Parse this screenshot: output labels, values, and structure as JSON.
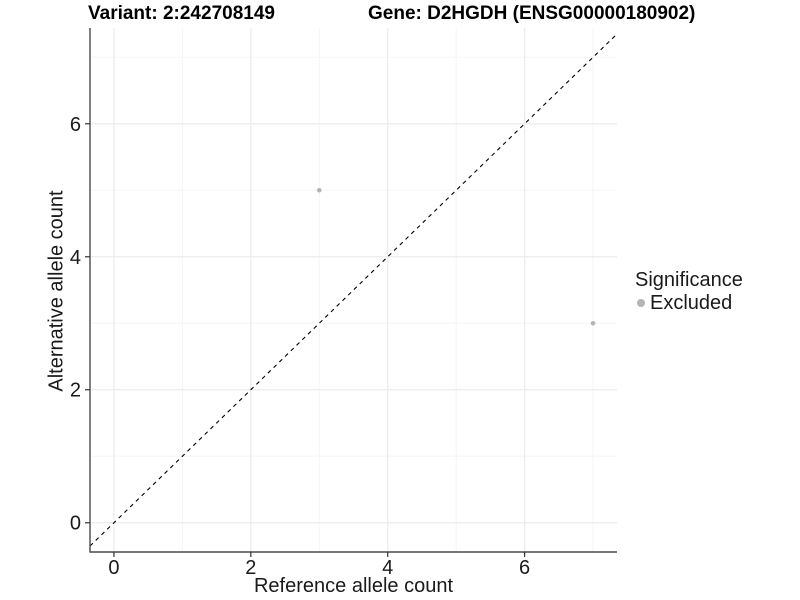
{
  "header": {
    "variant_title": "Variant: 2:242708149",
    "gene_title": "Gene: D2HGDH (ENSG00000180902)"
  },
  "axis": {
    "x_title": "Reference allele count",
    "y_title": "Alternative allele count"
  },
  "legend": {
    "title": "Significance",
    "items": [
      {
        "label": "Excluded",
        "color": "#b4b4b4"
      }
    ]
  },
  "colors": {
    "grid_major": "#ebebeb",
    "grid_minor": "#f5f5f5",
    "axis_line": "#4a4a4a",
    "tick": "#333333",
    "tick_label": "#1a1a1a",
    "point": "#b4b4b4",
    "reference_line": "#000000"
  },
  "chart_data": {
    "type": "scatter",
    "title": "Variant: 2:242708149    Gene: D2HGDH (ENSG00000180902)",
    "xlabel": "Reference allele count",
    "ylabel": "Alternative allele count",
    "xlim": [
      -0.35,
      7.35
    ],
    "ylim": [
      -0.44,
      7.44
    ],
    "x_ticks": [
      0,
      2,
      4,
      6
    ],
    "y_ticks": [
      0,
      2,
      4,
      6
    ],
    "x_minor": [
      1,
      3,
      5,
      7
    ],
    "y_minor": [
      1,
      3,
      5,
      7
    ],
    "grid": true,
    "legend_position": "right",
    "series": [
      {
        "name": "Excluded",
        "type": "points",
        "color": "#b4b4b4",
        "points": [
          [
            3,
            5
          ],
          [
            7,
            3
          ]
        ]
      }
    ],
    "reference_line": {
      "kind": "identity",
      "from": [
        -0.35,
        -0.35
      ],
      "to": [
        7.35,
        7.35
      ],
      "style": "dashed",
      "color": "#000000"
    }
  }
}
